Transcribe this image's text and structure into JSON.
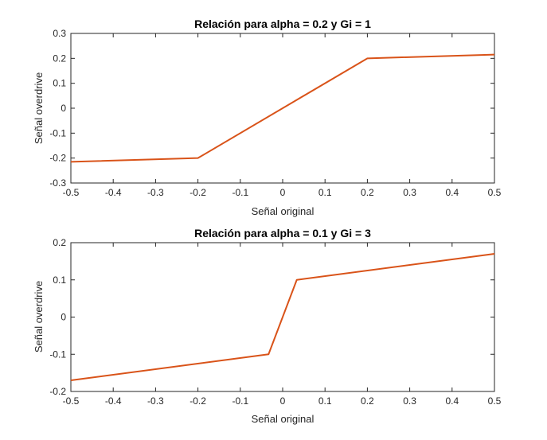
{
  "chart_data": [
    {
      "type": "line",
      "title": "Relación para alpha = 0.2 y Gi = 1",
      "xlabel": "Señal original",
      "ylabel": "Señal overdrive",
      "xlim": [
        -0.5,
        0.5
      ],
      "ylim": [
        -0.3,
        0.3
      ],
      "xticks": [
        -0.5,
        -0.4,
        -0.3,
        -0.2,
        -0.1,
        0,
        0.1,
        0.2,
        0.3,
        0.4,
        0.5
      ],
      "yticks": [
        -0.3,
        -0.2,
        -0.1,
        0,
        0.1,
        0.2,
        0.3
      ],
      "xtick_labels": [
        "-0.5",
        "-0.4",
        "-0.3",
        "-0.2",
        "-0.1",
        "0",
        "0.1",
        "0.2",
        "0.3",
        "0.4",
        "0.5"
      ],
      "ytick_labels": [
        "-0.3",
        "-0.2",
        "-0.1",
        "0",
        "0.1",
        "0.2",
        "0.3"
      ],
      "grid": false,
      "series": [
        {
          "color": "#D95319",
          "x": [
            -0.5,
            -0.2,
            0.2,
            0.5
          ],
          "y": [
            -0.215,
            -0.2,
            0.2,
            0.215
          ]
        }
      ]
    },
    {
      "type": "line",
      "title": "Relación para alpha = 0.1 y Gi = 3",
      "xlabel": "Señal original",
      "ylabel": "Señal overdrive",
      "xlim": [
        -0.5,
        0.5
      ],
      "ylim": [
        -0.2,
        0.2
      ],
      "xticks": [
        -0.5,
        -0.4,
        -0.3,
        -0.2,
        -0.1,
        0,
        0.1,
        0.2,
        0.3,
        0.4,
        0.5
      ],
      "yticks": [
        -0.2,
        -0.1,
        0,
        0.1,
        0.2
      ],
      "xtick_labels": [
        "-0.5",
        "-0.4",
        "-0.3",
        "-0.2",
        "-0.1",
        "0",
        "0.1",
        "0.2",
        "0.3",
        "0.4",
        "0.5"
      ],
      "ytick_labels": [
        "-0.2",
        "-0.1",
        "0",
        "0.1",
        "0.2"
      ],
      "grid": false,
      "series": [
        {
          "color": "#D95319",
          "x": [
            -0.5,
            -0.0333,
            0.0333,
            0.5
          ],
          "y": [
            -0.17,
            -0.1,
            0.1,
            0.17
          ]
        }
      ]
    }
  ]
}
